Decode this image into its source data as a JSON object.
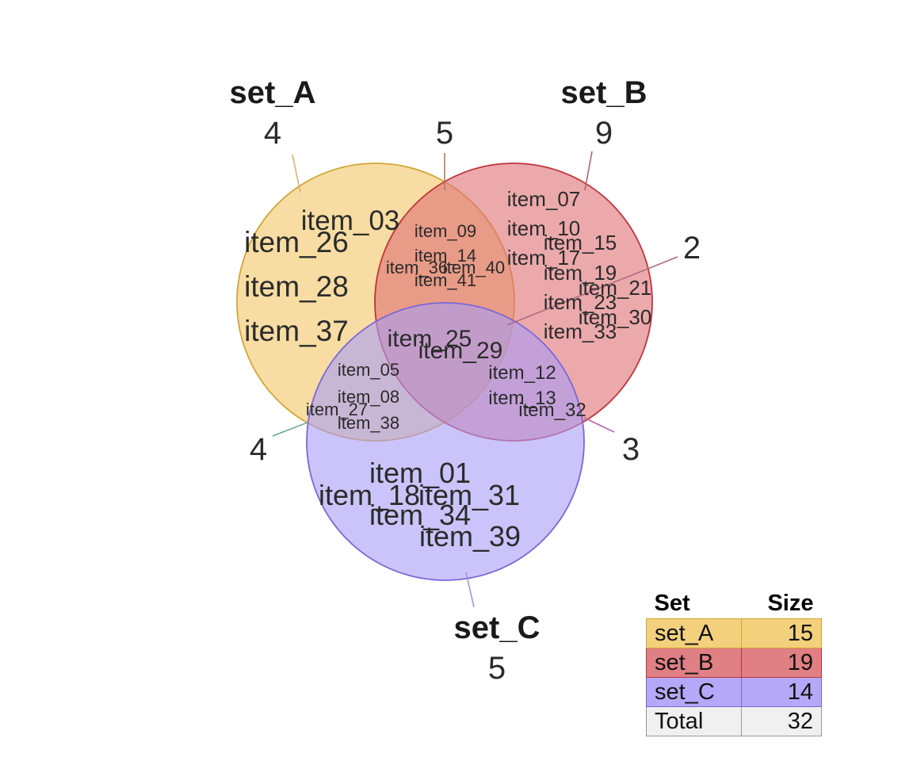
{
  "sets": [
    {
      "id": "A",
      "name": "set_A",
      "size": 15,
      "fill": "#f2c666",
      "stroke": "#d4a437",
      "leader": "#d9b26a"
    },
    {
      "id": "B",
      "name": "set_B",
      "size": 19,
      "fill": "#de6f73",
      "stroke": "#c0333c",
      "leader": "#b5636b"
    },
    {
      "id": "C",
      "name": "set_C",
      "size": 14,
      "fill": "#a99cf7",
      "stroke": "#7a67d8",
      "leader": "#9f95db"
    }
  ],
  "region_counts": {
    "A_only": 4,
    "B_only": 9,
    "C_only": 5,
    "A_and_B": 5,
    "A_and_C": 4,
    "B_and_C": 3,
    "A_and_B_and_C": 2
  },
  "region_items": {
    "A_only": [
      "item_03",
      "item_26",
      "item_28",
      "item_37"
    ],
    "B_only": [
      "item_07",
      "item_10",
      "item_15",
      "item_17",
      "item_19",
      "item_21",
      "item_23",
      "item_30",
      "item_33"
    ],
    "C_only": [
      "item_01",
      "item_18",
      "item_31",
      "item_34",
      "item_39"
    ],
    "A_and_B": [
      "item_09",
      "item_14",
      "item_36",
      "item_40",
      "item_41"
    ],
    "A_and_C": [
      "item_05",
      "item_08",
      "item_27",
      "item_38"
    ],
    "B_and_C": [
      "item_12",
      "item_13",
      "item_32"
    ],
    "A_and_B_and_C": [
      "item_25",
      "item_29"
    ]
  },
  "table": {
    "header_set": "Set",
    "header_size": "Size",
    "rows": [
      {
        "name": "set_A",
        "size": "15",
        "color": "#f2d07c",
        "border": "#d4a437"
      },
      {
        "name": "set_B",
        "size": "19",
        "color": "#e07f84",
        "border": "#c0333c"
      },
      {
        "name": "set_C",
        "size": "14",
        "color": "#b6a8f8",
        "border": "#7a67d8"
      }
    ],
    "total": {
      "name": "Total",
      "size": "32",
      "color": "#f0f0f0",
      "border": "#9a9a9a"
    }
  }
}
